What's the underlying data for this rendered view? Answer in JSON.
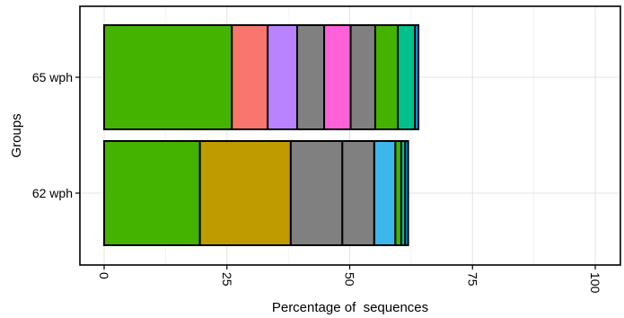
{
  "chart_data": {
    "type": "bar",
    "orientation": "horizontal",
    "stacked": true,
    "xlabel": "Percentage of  sequences",
    "ylabel": "Groups",
    "xlim": [
      -5,
      105
    ],
    "x_ticks": [
      0,
      25,
      50,
      75,
      100
    ],
    "x_tick_labels": [
      "0",
      "25",
      "50",
      "75",
      "100"
    ],
    "grid": true,
    "legend": "none",
    "categories": [
      "65 wph",
      "62 wph"
    ],
    "bars": [
      {
        "category": "65 wph",
        "segments": [
          {
            "value": 26.0,
            "color": "#44B300"
          },
          {
            "value": 7.3,
            "color": "#F8766D"
          },
          {
            "value": 6.0,
            "color": "#B983FF"
          },
          {
            "value": 5.5,
            "color": "#808080"
          },
          {
            "value": 5.4,
            "color": "#FF61D9"
          },
          {
            "value": 5.0,
            "color": "#808080"
          },
          {
            "value": 4.6,
            "color": "#44B300"
          },
          {
            "value": 3.5,
            "color": "#00C08B"
          },
          {
            "value": 0.7,
            "color": "#00A9FF"
          }
        ]
      },
      {
        "category": "62 wph",
        "segments": [
          {
            "value": 19.5,
            "color": "#44B300"
          },
          {
            "value": 18.5,
            "color": "#C09B00"
          },
          {
            "value": 10.5,
            "color": "#808080"
          },
          {
            "value": 6.5,
            "color": "#808080"
          },
          {
            "value": 4.3,
            "color": "#3DB7E9"
          },
          {
            "value": 1.2,
            "color": "#44B300"
          },
          {
            "value": 0.8,
            "color": "#00C08B"
          },
          {
            "value": 0.6,
            "color": "#00A9FF"
          }
        ]
      }
    ]
  }
}
